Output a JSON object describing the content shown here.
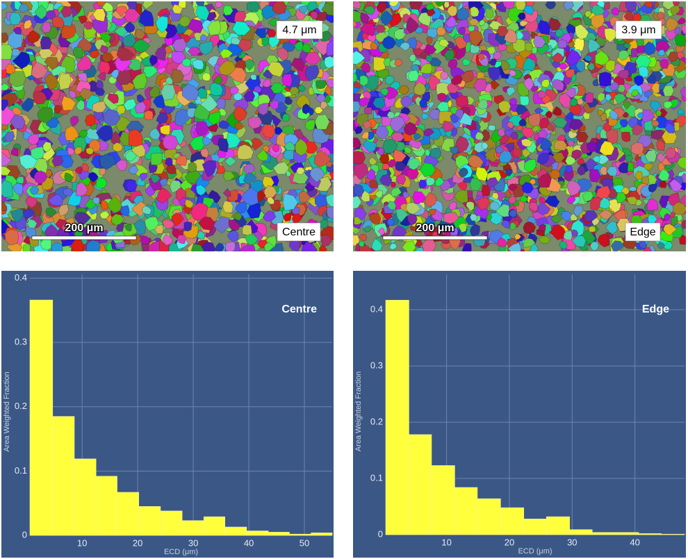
{
  "maps": [
    {
      "grain_size": "4.7 μm",
      "scale_bar": "200 μm",
      "label": "Centre"
    },
    {
      "grain_size": "3.9 μm",
      "scale_bar": "200 μm",
      "label": "Edge"
    }
  ],
  "chart_data": [
    {
      "type": "histogram",
      "title": "Centre",
      "x_label": "ECD (μm)",
      "y_label": "Area Weighted Fraction",
      "bins": [
        0.6,
        4.7,
        8.6,
        12.5,
        16.3,
        20.2,
        24.1,
        28.0,
        31.9,
        35.7,
        39.6,
        43.5,
        47.3,
        51.2,
        55.0
      ],
      "values": [
        0.366,
        0.185,
        0.119,
        0.092,
        0.067,
        0.045,
        0.038,
        0.023,
        0.029,
        0.013,
        0.007,
        0.005,
        0.002,
        0.004
      ],
      "color": "#ffff3c",
      "xlim": [
        0.6,
        55.0
      ],
      "ylim": [
        0,
        0.406
      ],
      "xticks": [
        10,
        20,
        30,
        40,
        50
      ],
      "yticks": [
        0,
        0.1,
        0.2,
        0.3,
        0.4
      ],
      "grid": true
    },
    {
      "type": "histogram",
      "title": "Edge",
      "x_label": "ECD (μm)",
      "y_label": "Area Weighted Fraction",
      "bins": [
        0.3,
        4.0,
        7.6,
        11.3,
        14.9,
        18.6,
        22.3,
        25.9,
        29.6,
        33.2,
        36.9,
        40.6,
        44.2,
        47.9
      ],
      "values": [
        0.417,
        0.178,
        0.123,
        0.084,
        0.064,
        0.048,
        0.028,
        0.032,
        0.009,
        0.004,
        0.004,
        0.002,
        0.001
      ],
      "color": "#ffff3c",
      "xlim": [
        0.3,
        47.9
      ],
      "ylim": [
        0,
        0.463
      ],
      "xticks": [
        10,
        20,
        30,
        40
      ],
      "yticks": [
        0,
        0.1,
        0.2,
        0.3,
        0.4
      ],
      "grid": true
    }
  ]
}
